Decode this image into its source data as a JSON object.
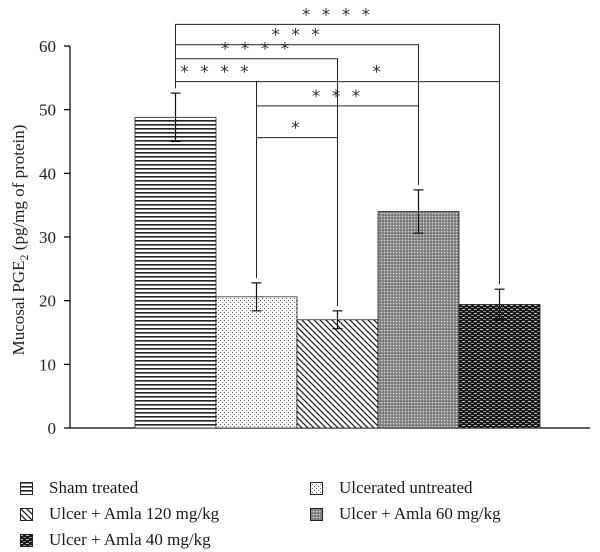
{
  "chart_data": {
    "type": "bar",
    "title": "",
    "xlabel": "",
    "ylabel_prefix": "Mucosal PGE",
    "ylabel_sub": "2",
    "ylabel_suffix": " (pg/mg of protein)",
    "ylim": [
      0,
      60
    ],
    "yticks": [
      "0",
      "10",
      "20",
      "30",
      "40",
      "50",
      "60"
    ],
    "grid": false,
    "legend_position": "bottom",
    "categories": [
      "Sham treated",
      "Ulcerated untreated",
      "Ulcer + Amla 120 mg/kg",
      "Ulcer + Amla 60 mg/kg",
      "Ulcer + Amla 40 mg/kg"
    ],
    "values": [
      48.8,
      20.6,
      17.0,
      34.0,
      19.4
    ],
    "errors": [
      3.8,
      2.2,
      1.4,
      3.4,
      2.4
    ],
    "patterns": [
      "horizontal-lines",
      "sparse-dots",
      "diagonal-hatch",
      "dense-dots-gray",
      "dark-dashes"
    ],
    "significance": [
      {
        "from": 0,
        "to": 1,
        "label": "* * * *",
        "level": 54.4
      },
      {
        "from": 0,
        "to": 2,
        "label": "* * * *",
        "level": 58.0
      },
      {
        "from": 0,
        "to": 3,
        "label": "* * *",
        "level": 60.2
      },
      {
        "from": 0,
        "to": 4,
        "label": "* * * *",
        "level": 63.4
      },
      {
        "from": 1,
        "to": 2,
        "label": "*",
        "level": 45.6
      },
      {
        "from": 1,
        "to": 3,
        "label": "* * *",
        "level": 50.6
      },
      {
        "from": 1,
        "to": 4,
        "label": "*",
        "level": 54.4
      }
    ]
  }
}
